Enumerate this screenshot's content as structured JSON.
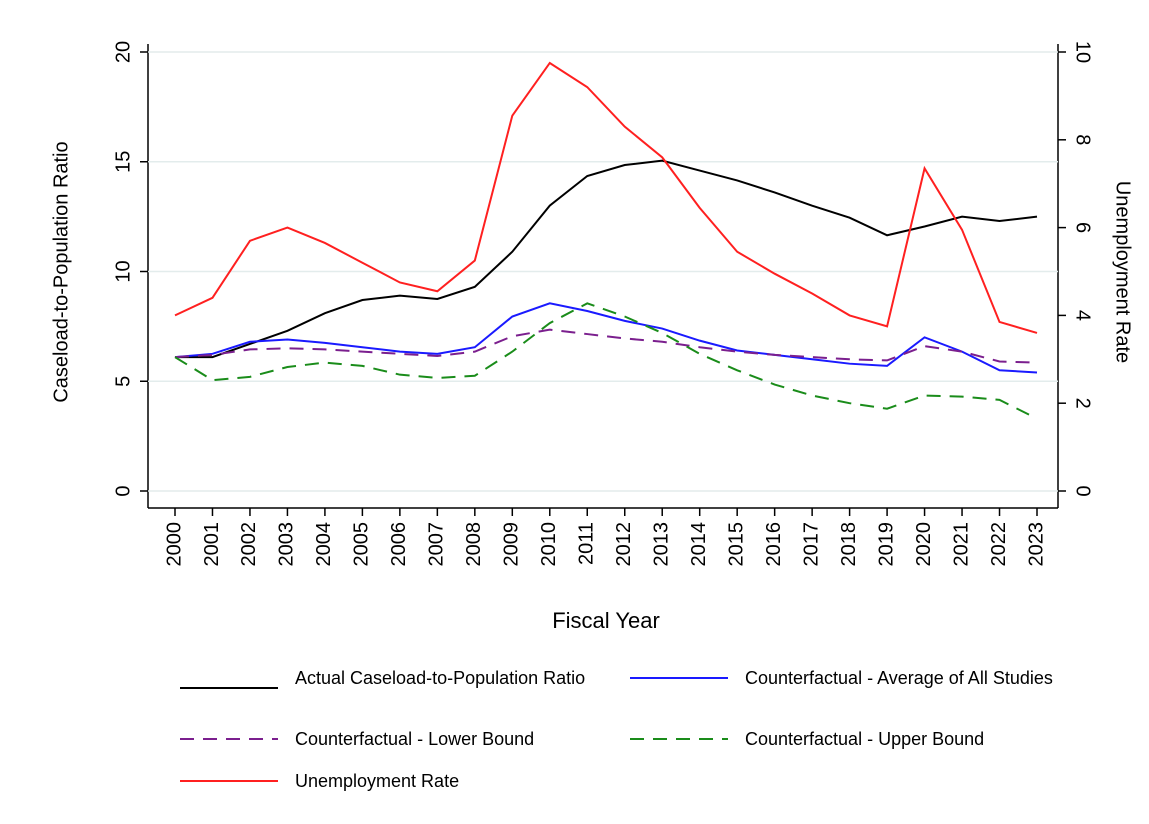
{
  "chart_data": {
    "type": "line",
    "x_label": "Fiscal Year",
    "y_label": "Caseload-to-Population Ratio",
    "y2_label": "Unemployment Rate",
    "categories": [
      "2000",
      "2001",
      "2002",
      "2003",
      "2004",
      "2005",
      "2006",
      "2007",
      "2008",
      "2009",
      "2010",
      "2011",
      "2012",
      "2013",
      "2014",
      "2015",
      "2016",
      "2017",
      "2018",
      "2019",
      "2020",
      "2021",
      "2022",
      "2023"
    ],
    "ylim": [
      0,
      20
    ],
    "yticks": [
      0,
      5,
      10,
      15,
      20
    ],
    "y2lim": [
      0,
      10
    ],
    "y2ticks": [
      0,
      2,
      4,
      6,
      8,
      10
    ],
    "grid": true,
    "legend": "bottom",
    "series": [
      {
        "name": "Actual Caseload-to-Population Ratio",
        "color": "#000000",
        "dash": "solid",
        "values": [
          6.1,
          6.1,
          6.7,
          7.3,
          8.1,
          8.7,
          8.9,
          8.75,
          9.3,
          10.9,
          13.0,
          14.35,
          14.85,
          15.05,
          14.6,
          14.15,
          13.6,
          13.0,
          12.45,
          11.65,
          12.05,
          12.5,
          12.3,
          12.5
        ]
      },
      {
        "name": "Counterfactual - Average of All Studies",
        "color": "#1a1aff",
        "dash": "solid",
        "values": [
          6.1,
          6.25,
          6.8,
          6.9,
          6.75,
          6.55,
          6.35,
          6.25,
          6.55,
          7.95,
          8.55,
          8.2,
          7.75,
          7.4,
          6.85,
          6.4,
          6.2,
          6.0,
          5.8,
          5.7,
          7.0,
          6.35,
          5.5,
          5.4
        ]
      },
      {
        "name": "Counterfactual - Lower Bound",
        "color": "#7b1f8e",
        "dash": "dashed",
        "values": [
          6.1,
          6.2,
          6.45,
          6.5,
          6.45,
          6.35,
          6.25,
          6.15,
          6.35,
          7.05,
          7.35,
          7.15,
          6.95,
          6.8,
          6.55,
          6.35,
          6.2,
          6.1,
          6.0,
          5.95,
          6.6,
          6.35,
          5.9,
          5.85
        ]
      },
      {
        "name": "Counterfactual - Upper Bound",
        "color": "#1a8c1a",
        "dash": "dashed",
        "values": [
          6.1,
          5.05,
          5.2,
          5.65,
          5.85,
          5.7,
          5.3,
          5.15,
          5.25,
          6.35,
          7.65,
          8.55,
          7.95,
          7.2,
          6.25,
          5.5,
          4.85,
          4.35,
          4.0,
          3.75,
          4.35,
          4.3,
          4.15,
          3.3
        ]
      },
      {
        "name": "Unemployment Rate",
        "color": "#ff2020",
        "dash": "solid",
        "axis": "y2",
        "values": [
          4.0,
          4.4,
          5.7,
          6.0,
          5.65,
          5.2,
          4.75,
          4.55,
          5.25,
          8.55,
          9.75,
          9.2,
          8.3,
          7.6,
          6.45,
          5.45,
          4.95,
          4.5,
          4.0,
          3.75,
          7.35,
          5.95,
          3.85,
          3.6
        ]
      }
    ]
  }
}
